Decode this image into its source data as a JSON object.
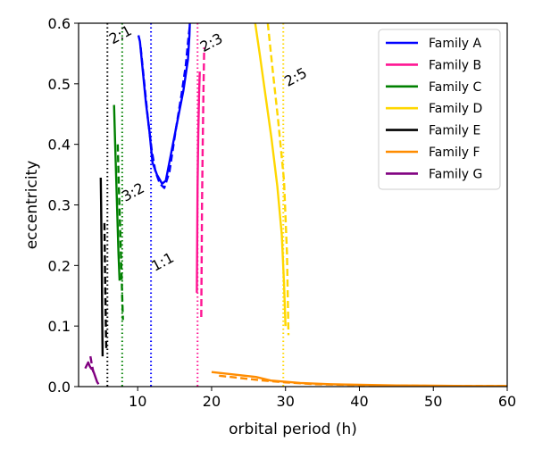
{
  "chart_data": {
    "type": "line",
    "title": "",
    "xlabel": "orbital period (h)",
    "ylabel": "eccentricity",
    "xlim": [
      2,
      60
    ],
    "ylim": [
      0,
      0.6
    ],
    "xticks": [
      10,
      20,
      30,
      40,
      50,
      60
    ],
    "yticks": [
      0.0,
      0.1,
      0.2,
      0.3,
      0.4,
      0.5,
      0.6
    ],
    "grid": false,
    "legend_position": "top-right",
    "resonances": [
      {
        "label": "2:1",
        "x": 5.9,
        "color": "#000000",
        "label_x": 6.6,
        "label_y": 0.565
      },
      {
        "label": "3:2",
        "x": 7.9,
        "color": "#008000",
        "label_x": 8.3,
        "label_y": 0.305
      },
      {
        "label": "1:1",
        "x": 11.8,
        "color": "#0000ff",
        "label_x": 12.3,
        "label_y": 0.19
      },
      {
        "label": "2:3",
        "x": 18.1,
        "color": "#ff1493",
        "label_x": 18.9,
        "label_y": 0.552
      },
      {
        "label": "2:5",
        "x": 29.7,
        "color": "#ffd700",
        "label_x": 30.3,
        "label_y": 0.495
      }
    ],
    "series": [
      {
        "name": "Family A",
        "color": "#0000ff",
        "solid": {
          "x": [
            10.1,
            10.3,
            10.7,
            11.1,
            11.6,
            12.0,
            12.6,
            13.3,
            13.8,
            14.6,
            15.4,
            16.2,
            16.8,
            17.0,
            17.05
          ],
          "y": [
            0.58,
            0.57,
            0.52,
            0.47,
            0.42,
            0.37,
            0.35,
            0.335,
            0.34,
            0.39,
            0.44,
            0.49,
            0.54,
            0.58,
            0.6
          ]
        },
        "dashed": {
          "x": [
            10.4,
            10.9,
            11.4,
            11.9,
            12.4,
            13.0,
            13.6,
            14.3,
            15.1,
            15.9,
            16.5,
            16.9,
            17.1
          ],
          "y": [
            0.56,
            0.5,
            0.44,
            0.39,
            0.355,
            0.335,
            0.328,
            0.355,
            0.42,
            0.48,
            0.53,
            0.58,
            0.6
          ]
        }
      },
      {
        "name": "Family B",
        "color": "#ff1493",
        "solid": {
          "x": [
            18.0,
            18.05,
            18.1,
            18.2,
            18.3,
            18.4
          ],
          "y": [
            0.155,
            0.24,
            0.33,
            0.42,
            0.48,
            0.52
          ]
        },
        "dashed": {
          "x": [
            18.6,
            18.65,
            18.7,
            18.8,
            18.9,
            19.0
          ],
          "y": [
            0.115,
            0.2,
            0.3,
            0.4,
            0.49,
            0.56
          ]
        }
      },
      {
        "name": "Family C",
        "color": "#008000",
        "solid": {
          "x": [
            6.8,
            6.95,
            7.1,
            7.25,
            7.4,
            7.55
          ],
          "y": [
            0.465,
            0.4,
            0.34,
            0.28,
            0.22,
            0.175
          ]
        },
        "dashed": {
          "x": [
            7.3,
            7.45,
            7.6,
            7.75,
            7.9,
            8.0
          ],
          "y": [
            0.4,
            0.33,
            0.27,
            0.21,
            0.15,
            0.11
          ]
        }
      },
      {
        "name": "Family D",
        "color": "#ffd700",
        "solid": {
          "x": [
            25.9,
            26.5,
            27.3,
            28.1,
            28.9,
            29.5,
            29.8,
            30.0
          ],
          "y": [
            0.6,
            0.55,
            0.48,
            0.41,
            0.33,
            0.25,
            0.17,
            0.1
          ]
        },
        "dashed": {
          "x": [
            27.6,
            28.2,
            29.0,
            29.8,
            30.2,
            30.4
          ],
          "y": [
            0.6,
            0.53,
            0.44,
            0.34,
            0.22,
            0.085
          ]
        }
      },
      {
        "name": "Family E",
        "color": "#000000",
        "solid": {
          "x": [
            5.0,
            5.05,
            5.1,
            5.15,
            5.2,
            5.25
          ],
          "y": [
            0.345,
            0.3,
            0.24,
            0.18,
            0.11,
            0.05
          ]
        },
        "dashed": {
          "x": [
            5.5,
            5.55,
            5.6,
            5.65,
            5.7,
            5.75
          ],
          "y": [
            0.27,
            0.22,
            0.17,
            0.13,
            0.09,
            0.06
          ]
        }
      },
      {
        "name": "Family F",
        "color": "#ff8c00",
        "solid": {
          "x": [
            20,
            23,
            26,
            28,
            32,
            36,
            40,
            45,
            50,
            55,
            60
          ],
          "y": [
            0.024,
            0.02,
            0.016,
            0.01,
            0.006,
            0.004,
            0.003,
            0.002,
            0.0015,
            0.001,
            0.001
          ]
        },
        "dashed": {
          "x": [
            21,
            24,
            27,
            30,
            34,
            38,
            42,
            47,
            52,
            57,
            60
          ],
          "y": [
            0.018,
            0.014,
            0.01,
            0.007,
            0.004,
            0.003,
            0.002,
            0.0015,
            0.001,
            0.001,
            0.001
          ]
        }
      },
      {
        "name": "Family G",
        "color": "#800080",
        "solid": {
          "x": [
            2.9,
            3.1,
            3.3,
            3.5,
            3.7,
            3.9,
            4.1,
            4.3,
            4.5,
            4.7
          ],
          "y": [
            0.03,
            0.035,
            0.04,
            0.034,
            0.03,
            0.028,
            0.022,
            0.015,
            0.008,
            0.004
          ]
        },
        "dashed": {
          "x": [
            3.6,
            3.7,
            3.8,
            3.9,
            4.0
          ],
          "y": [
            0.05,
            0.043,
            0.036,
            0.03,
            0.024
          ]
        }
      }
    ]
  }
}
